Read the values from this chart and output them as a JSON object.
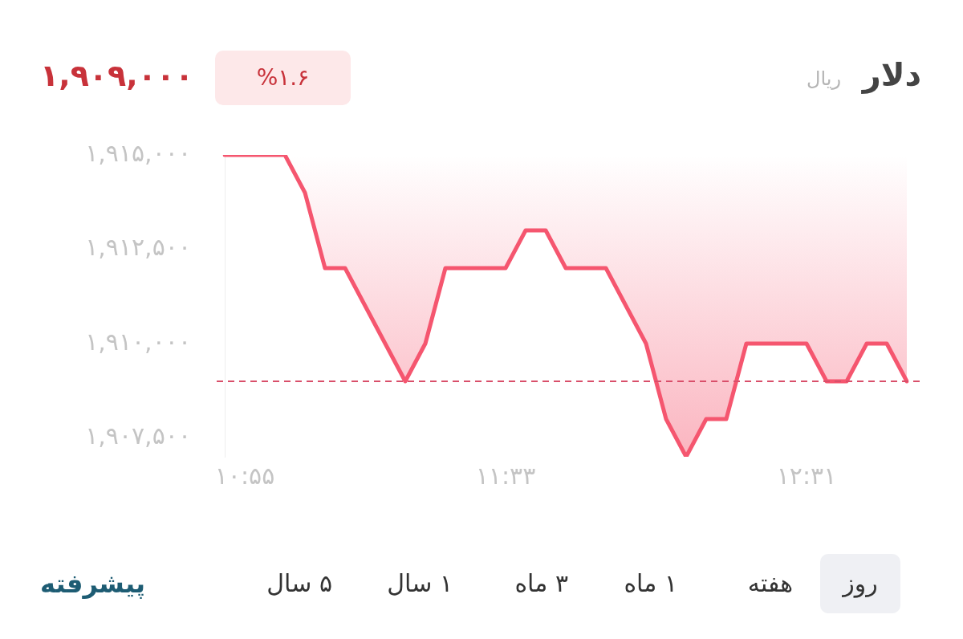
{
  "chart_data": {
    "type": "line",
    "title": "دلار",
    "subtitle": "ریال",
    "categories": [
      null,
      "۱۰:۵۵",
      null,
      null,
      null,
      null,
      null,
      null,
      null,
      null,
      null,
      null,
      null,
      null,
      "۱۱:۳۳",
      null,
      null,
      null,
      null,
      null,
      null,
      null,
      null,
      null,
      null,
      null,
      null,
      null,
      null,
      "۱۲:۳۱",
      null,
      null,
      null,
      null,
      null
    ],
    "series": [
      {
        "color": "#f5566f",
        "values": [
          1915000,
          1915000,
          1915000,
          1915000,
          1914000,
          1912000,
          1912000,
          1911000,
          1910000,
          1909000,
          1910000,
          1912000,
          1912000,
          1912000,
          1912000,
          1913000,
          1913000,
          1912000,
          1912000,
          1912000,
          1911000,
          1910000,
          1908000,
          1907000,
          1908000,
          1908000,
          1910000,
          1910000,
          1910000,
          1910000,
          1909000,
          1909000,
          1910000,
          1910000,
          1909000
        ]
      }
    ],
    "ylim": [
      1907000,
      1915000
    ],
    "yticks": [
      {
        "value": 1907500,
        "label": "۱,۹۰۷,۵۰۰"
      },
      {
        "value": 1910000,
        "label": "۱,۹۱۰,۰۰۰"
      },
      {
        "value": 1912500,
        "label": "۱,۹۱۲,۵۰۰"
      },
      {
        "value": 1915000,
        "label": "۱,۹۱۵,۰۰۰"
      }
    ],
    "ref_lines": [
      {
        "axis": "y",
        "value": 1909000,
        "color": "#d94f6a",
        "line_style": "dashed"
      }
    ],
    "annotations": [
      "۱,۹۰۹,۰۰۰",
      "%۱.۶",
      "روز",
      "هفته",
      "۱ ماه",
      "۳ ماه",
      "۱ سال",
      "۵ سال",
      "پیشرفته"
    ],
    "grid": false,
    "legend": false,
    "marker": "none",
    "line_style": "solid"
  }
}
